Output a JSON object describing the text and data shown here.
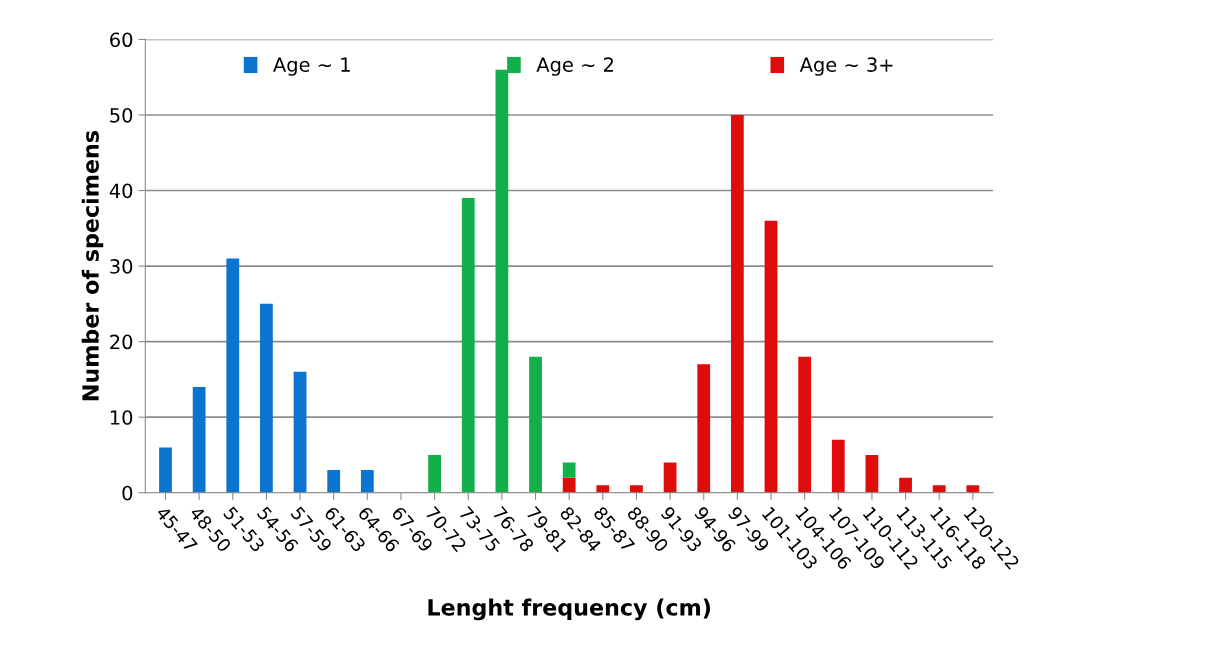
{
  "chart_data": {
    "type": "bar",
    "stacked": true,
    "xlabel": "Lenght frequency (cm)",
    "ylabel": "Number of specimens",
    "categories": [
      "45-47",
      "48-50",
      "51-53",
      "54-56",
      "57-59",
      "61-63",
      "64-66",
      "67-69",
      "70-72",
      "73-75",
      "76-78",
      "79-81",
      "82-84",
      "85-87",
      "88-90",
      "91-93",
      "94-96",
      "97-99",
      "101-103",
      "104-106",
      "107-109",
      "110-112",
      "113-115",
      "116-118",
      "120-122"
    ],
    "series": [
      {
        "name": "Age ~ 1",
        "color": "#0b74d0",
        "values": [
          6,
          14,
          31,
          25,
          16,
          3,
          3,
          null,
          null,
          null,
          null,
          null,
          null,
          null,
          null,
          null,
          null,
          null,
          null,
          null,
          null,
          null,
          null,
          null,
          null
        ]
      },
      {
        "name": "Age ~ 3+",
        "color": "#e00b0b",
        "values": [
          null,
          null,
          null,
          null,
          null,
          null,
          null,
          null,
          null,
          null,
          null,
          null,
          2,
          1,
          1,
          4,
          17,
          50,
          36,
          18,
          7,
          5,
          2,
          1,
          1
        ]
      },
      {
        "name": "Age ~ 2",
        "color": "#12b04a",
        "values": [
          null,
          null,
          null,
          null,
          null,
          null,
          null,
          null,
          5,
          39,
          56,
          18,
          2,
          null,
          null,
          null,
          null,
          null,
          null,
          null,
          null,
          null,
          null,
          null,
          null
        ]
      }
    ],
    "ylim": [
      0,
      60
    ],
    "yticks": [
      0,
      10,
      20,
      30,
      40,
      50,
      60
    ],
    "grid": "y",
    "legend": "top"
  }
}
